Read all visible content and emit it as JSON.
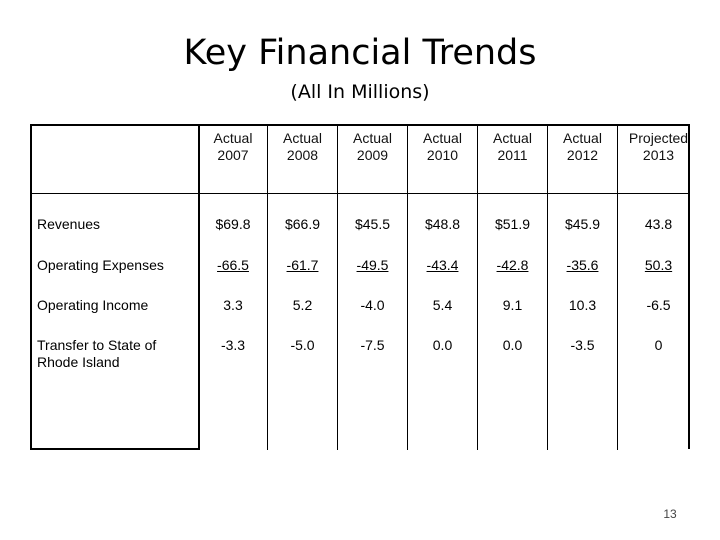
{
  "slide": {
    "title": "Key Financial Trends",
    "subtitle": "(All In Millions)",
    "page_number": "13"
  },
  "table": {
    "header_line1": [
      "Actual",
      "Actual",
      "Actual",
      "Actual",
      "Actual",
      "Actual",
      "Projected"
    ],
    "header_line2": [
      "2007",
      "2008",
      "2009",
      "2010",
      "2011",
      "2012",
      "2013"
    ],
    "rows": [
      {
        "label": "Revenues",
        "values": [
          "$69.8",
          "$66.9",
          "$45.5",
          "$48.8",
          "$51.9",
          "$45.9",
          "43.8"
        ]
      },
      {
        "label": "Operating Expenses",
        "values": [
          "-66.5",
          "-61.7",
          "-49.5",
          "-43.4",
          "-42.8",
          "-35.6",
          "50.3"
        ]
      },
      {
        "label": "Operating Income",
        "values": [
          "3.3",
          "5.2",
          "-4.0",
          "5.4",
          "9.1",
          "10.3",
          "-6.5"
        ]
      },
      {
        "label_line1": "Transfer to State of",
        "label_line2": "Rhode Island",
        "values": [
          "-3.3",
          "-5.0",
          "-7.5",
          "0.0",
          "0.0",
          "-3.5",
          "0"
        ]
      }
    ]
  }
}
